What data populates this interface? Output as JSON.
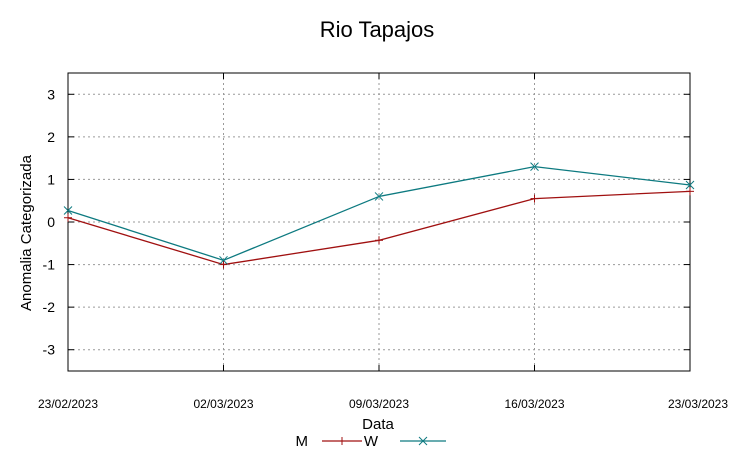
{
  "chart_data": {
    "type": "line",
    "title": "Rio Tapajos",
    "xlabel": "Data",
    "ylabel": "Anomalia Categorizada",
    "categories": [
      "23/02/2023",
      "02/03/2023",
      "09/03/2023",
      "16/03/2023",
      "23/03/2023"
    ],
    "ylim": [
      -3.5,
      3.5
    ],
    "yticks": [
      3,
      2,
      1,
      0,
      -1,
      -2,
      -3
    ],
    "grid": true,
    "legend_position": "bottom-center",
    "series": [
      {
        "name": "M",
        "values": [
          0.1,
          -1.0,
          -0.43,
          0.55,
          0.72
        ],
        "color": "#a01010",
        "marker": "plus"
      },
      {
        "name": "W",
        "values": [
          0.27,
          -0.9,
          0.6,
          1.3,
          0.87
        ],
        "color": "#0d7a80",
        "marker": "cross"
      }
    ]
  }
}
